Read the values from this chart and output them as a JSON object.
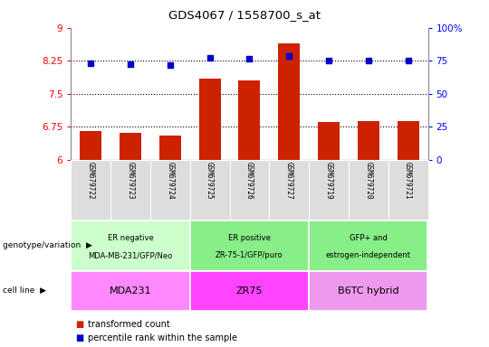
{
  "title": "GDS4067 / 1558700_s_at",
  "samples": [
    "GSM679722",
    "GSM679723",
    "GSM679724",
    "GSM679725",
    "GSM679726",
    "GSM679727",
    "GSM679719",
    "GSM679720",
    "GSM679721"
  ],
  "bar_values": [
    6.65,
    6.6,
    6.55,
    7.85,
    7.8,
    8.65,
    6.85,
    6.87,
    6.87
  ],
  "scatter_values": [
    8.2,
    8.17,
    8.16,
    8.32,
    8.3,
    8.35,
    8.25,
    8.25,
    8.26
  ],
  "bar_color": "#cc2200",
  "scatter_color": "#0000cc",
  "ylim_left": [
    6.0,
    9.0
  ],
  "ylim_right": [
    0,
    100
  ],
  "yticks_left": [
    6.0,
    6.75,
    7.5,
    8.25,
    9.0
  ],
  "yticks_right": [
    0,
    25,
    50,
    75,
    100
  ],
  "ytick_labels_left": [
    "6",
    "6.75",
    "7.5",
    "8.25",
    "9"
  ],
  "ytick_labels_right": [
    "0",
    "25",
    "50",
    "75",
    "100%"
  ],
  "groups": [
    {
      "label_top": "ER negative",
      "label_bot": "MDA-MB-231/GFP/Neo",
      "cell_line": "MDA231",
      "start": 0,
      "end": 3
    },
    {
      "label_top": "ER positive",
      "label_bot": "ZR-75-1/GFP/puro",
      "cell_line": "ZR75",
      "start": 3,
      "end": 6
    },
    {
      "label_top": "GFP+ and",
      "label_bot": "estrogen-independent",
      "cell_line": "B6TC hybrid",
      "start": 6,
      "end": 9
    }
  ],
  "geno_colors": [
    "#ccffcc",
    "#88ee88",
    "#88ee88"
  ],
  "cell_colors": [
    "#ff88ff",
    "#ff44ff",
    "#ee99ee"
  ],
  "sample_bg_color": "#dddddd",
  "legend_bar_label": "transformed count",
  "legend_scatter_label": "percentile rank within the sample",
  "genotype_label": "genotype/variation",
  "cell_line_label": "cell line",
  "bg_color": "#ffffff"
}
